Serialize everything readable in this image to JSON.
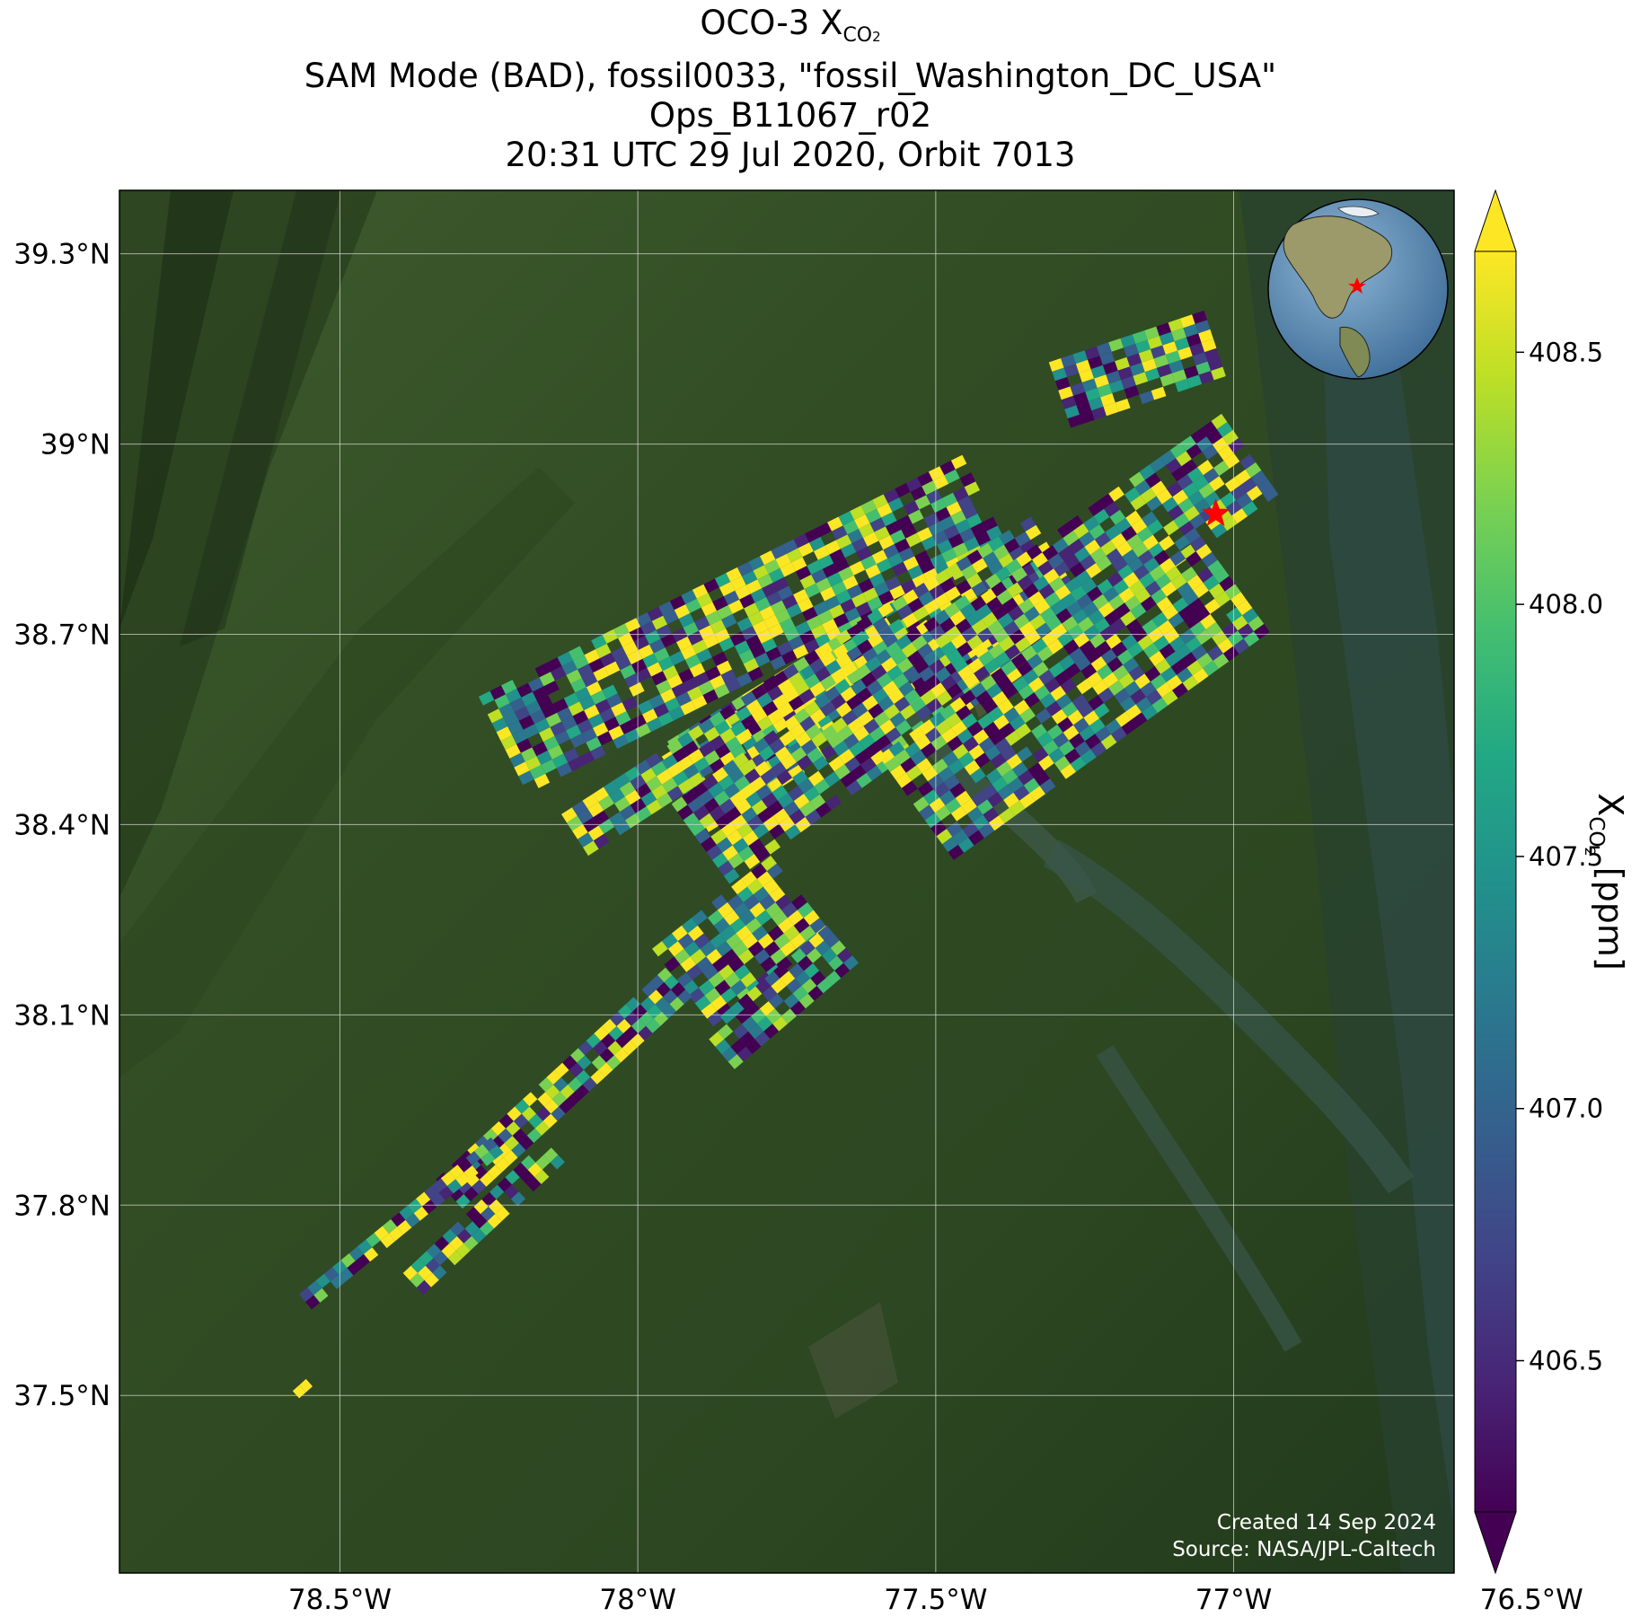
{
  "title": {
    "line1_main": "OCO-3 X",
    "line1_sub": "CO",
    "line1_sub2": "2",
    "line2": "SAM Mode (BAD), fossil0033, \"fossil_Washington_DC_USA\"",
    "line3": "Ops_B11067_r02",
    "line4": "20:31 UTC 29 Jul 2020, Orbit 7013"
  },
  "map": {
    "lon_range": [
      -78.87,
      -76.63
    ],
    "lat_range": [
      37.22,
      39.4
    ],
    "lon_ticks": [
      {
        "value": -78.5,
        "label": "78.5°W"
      },
      {
        "value": -78.0,
        "label": "78°W"
      },
      {
        "value": -77.5,
        "label": "77.5°W"
      },
      {
        "value": -77.0,
        "label": "77°W"
      },
      {
        "value": -76.5,
        "label": "76.5°W"
      }
    ],
    "lat_ticks": [
      {
        "value": 39.3,
        "label": "39.3°N"
      },
      {
        "value": 39.0,
        "label": "39°N"
      },
      {
        "value": 38.7,
        "label": "38.7°N"
      },
      {
        "value": 38.4,
        "label": "38.4°N"
      },
      {
        "value": 38.1,
        "label": "38.1°N"
      },
      {
        "value": 37.8,
        "label": "37.8°N"
      },
      {
        "value": 37.5,
        "label": "37.5°N"
      }
    ],
    "target": {
      "lon": -77.03,
      "lat": 38.89,
      "marker": "red-star"
    },
    "colors": {
      "target": "#ff0000",
      "grid": "#dddddd"
    },
    "inset": {
      "description_icon": "globe-inset-icon"
    },
    "credit_line1": "Created 14 Sep 2024",
    "credit_line2": "Source: NASA/JPL-Caltech"
  },
  "colorbar": {
    "colormap": "viridis",
    "range": [
      406.2,
      408.7
    ],
    "ticks": [
      {
        "value": 406.5,
        "label": "406.5"
      },
      {
        "value": 407.0,
        "label": "407.0"
      },
      {
        "value": 407.5,
        "label": "407.5"
      },
      {
        "value": 408.0,
        "label": "408.0"
      },
      {
        "value": 408.5,
        "label": "408.5"
      }
    ],
    "label_main": "X",
    "label_sub": "CO",
    "label_sub2": "2",
    "label_unit": " [ppm]",
    "extend": "both"
  }
}
